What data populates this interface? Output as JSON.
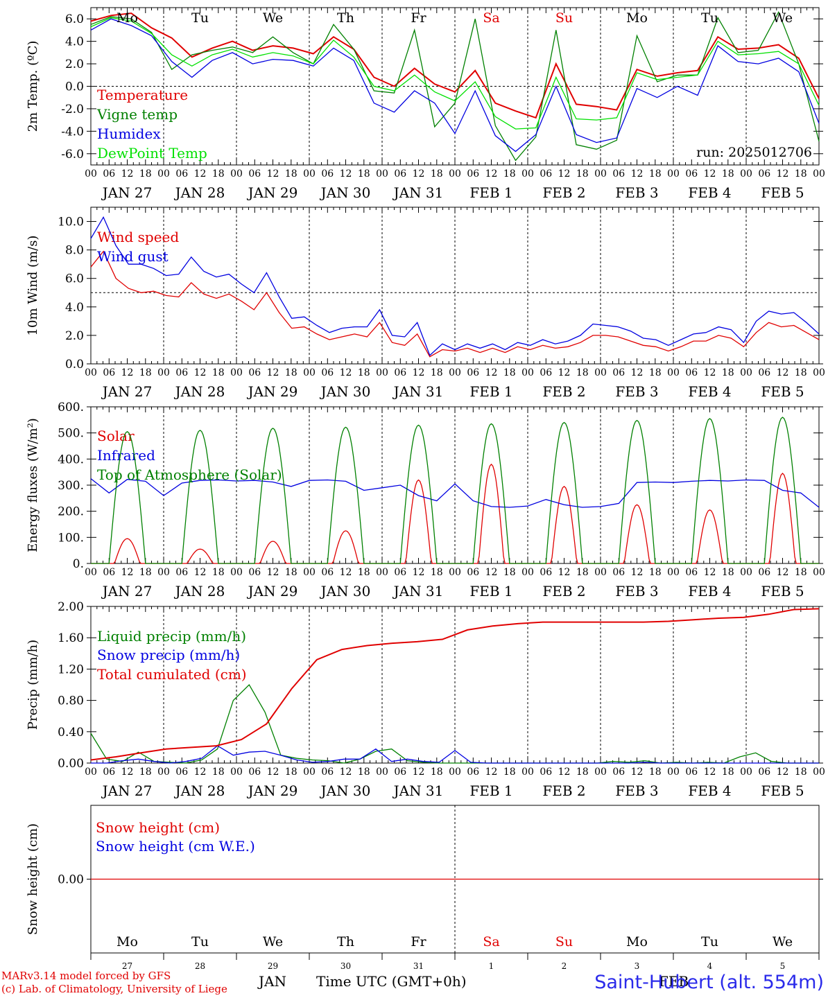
{
  "credits": {
    "line1": "MARv3.14 model forced by GFS",
    "line2": "(c) Lab. of Climatology, University of Liege"
  },
  "station": "Saint-Hubert (alt. 554m)",
  "x_axis_title": "Time UTC (GMT+0h)",
  "month_labels": {
    "first": "JAN",
    "second": "FEB"
  },
  "hour_labels": [
    "00",
    "06",
    "12",
    "18"
  ],
  "weekdays": [
    {
      "label": "Mo",
      "weekend": false
    },
    {
      "label": "Tu",
      "weekend": false
    },
    {
      "label": "We",
      "weekend": false
    },
    {
      "label": "Th",
      "weekend": false
    },
    {
      "label": "Fr",
      "weekend": false
    },
    {
      "label": "Sa",
      "weekend": true
    },
    {
      "label": "Su",
      "weekend": true
    },
    {
      "label": "Mo",
      "weekend": false
    },
    {
      "label": "Tu",
      "weekend": false
    },
    {
      "label": "We",
      "weekend": false
    }
  ],
  "day_labels": [
    "JAN 27",
    "JAN 28",
    "JAN 29",
    "JAN 30",
    "JAN 31",
    "FEB  1",
    "FEB  2",
    "FEB  3",
    "FEB  4",
    "FEB  5"
  ],
  "day_numbers": [
    "27",
    "28",
    "29",
    "30",
    "31",
    "1",
    "2",
    "3",
    "4",
    "5"
  ],
  "colors": {
    "red": "#e00000",
    "green": "#008000",
    "blue": "#0000e0",
    "lightgreen": "#00e000",
    "weekend": "#e00000"
  },
  "chart_data": [
    {
      "type": "line",
      "ylabel": "2m Temp. (ºC)",
      "ylim": [
        -7,
        7
      ],
      "ticks": [
        "6.0",
        "4.0",
        "2.0",
        "0.0",
        "-2.0",
        "-4.0",
        "-6.0"
      ],
      "tick_values": [
        6,
        4,
        2,
        0,
        -2,
        -4,
        -6
      ],
      "ref_line": 0,
      "annotation": "run: 2025012706",
      "x_hours": [
        0,
        6,
        12,
        18,
        24,
        30,
        36,
        42,
        48,
        54,
        60,
        66,
        72,
        78,
        84,
        90,
        96,
        102,
        108,
        114,
        120,
        126,
        132,
        138,
        144,
        150,
        156,
        162,
        168,
        174,
        180,
        186,
        192,
        198,
        204,
        210,
        216,
        222,
        228,
        234,
        240
      ],
      "series": [
        {
          "name": "Temperature",
          "color": "red",
          "values": [
            5.8,
            6.3,
            6.5,
            5.2,
            4.3,
            2.6,
            3.4,
            4.0,
            3.2,
            3.6,
            3.4,
            2.9,
            4.4,
            3.3,
            0.8,
            0.0,
            1.6,
            0.2,
            -0.5,
            1.4,
            -1.5,
            -2.2,
            -2.8,
            2.0,
            -1.6,
            -1.8,
            -2.1,
            1.5,
            0.9,
            1.2,
            1.4,
            4.4,
            3.3,
            3.4,
            3.7,
            2.5,
            -1.1
          ]
        },
        {
          "name": "Vigne temp",
          "color": "green",
          "values": [
            5.5,
            6.2,
            6.0,
            4.8,
            1.5,
            2.8,
            3.2,
            3.5,
            3.0,
            4.4,
            3.0,
            2.0,
            5.5,
            3.3,
            -0.4,
            -0.6,
            5.0,
            -3.6,
            -1.5,
            6.0,
            -3.5,
            -6.6,
            -4.5,
            5.0,
            -5.2,
            -5.6,
            -4.8,
            4.5,
            0.4,
            1.0,
            1.0,
            6.1,
            3.0,
            3.2,
            6.6,
            2.0,
            -4.9
          ]
        },
        {
          "name": "Humidex",
          "color": "blue",
          "values": [
            5.0,
            6.0,
            5.4,
            4.5,
            2.2,
            0.8,
            2.3,
            3.0,
            2.0,
            2.4,
            2.3,
            1.8,
            3.4,
            2.3,
            -1.5,
            -2.3,
            -0.4,
            -1.5,
            -4.2,
            -0.4,
            -4.4,
            -5.8,
            -4.3,
            0.0,
            -4.3,
            -5.0,
            -4.6,
            -0.2,
            -1.0,
            0.0,
            -0.8,
            3.6,
            2.2,
            2.0,
            2.5,
            1.3,
            -3.3
          ]
        },
        {
          "name": "DewPoint Temp",
          "color": "lightgreen",
          "values": [
            5.3,
            6.1,
            5.8,
            4.7,
            2.8,
            1.8,
            2.8,
            3.3,
            2.6,
            3.0,
            2.7,
            2.0,
            4.1,
            2.6,
            0.0,
            -0.4,
            1.0,
            -0.5,
            -1.3,
            0.4,
            -2.7,
            -3.8,
            -3.7,
            0.8,
            -2.9,
            -3.0,
            -2.8,
            1.2,
            0.6,
            0.8,
            1.0,
            4.0,
            2.8,
            2.9,
            3.1,
            2.0,
            -1.7
          ]
        }
      ]
    },
    {
      "type": "line",
      "ylabel": "10m Wind (m/s)",
      "ylim": [
        0,
        11
      ],
      "ticks": [
        "10.0",
        "8.0",
        "6.0",
        "4.0",
        "2.0",
        "0.0"
      ],
      "tick_values": [
        10,
        8,
        6,
        4,
        2,
        0
      ],
      "ref_line": 5,
      "series": [
        {
          "name": "Wind speed",
          "color": "red",
          "values": [
            6.8,
            7.9,
            6.0,
            5.3,
            5.0,
            5.1,
            4.8,
            4.7,
            5.7,
            4.9,
            4.6,
            4.9,
            4.4,
            3.8,
            5.0,
            3.6,
            2.5,
            2.6,
            2.1,
            1.7,
            1.9,
            2.1,
            1.9,
            2.9,
            1.5,
            1.3,
            2.1,
            0.5,
            1.0,
            0.9,
            1.1,
            0.8,
            1.1,
            0.8,
            1.2,
            1.0,
            1.3,
            1.1,
            1.2,
            1.5,
            2.0,
            2.0,
            1.9,
            1.6,
            1.3,
            1.2,
            0.9,
            1.2,
            1.6,
            1.6,
            2.0,
            1.8,
            1.2,
            2.2,
            2.9,
            2.6,
            2.7,
            2.2,
            1.7
          ]
        },
        {
          "name": "Wind gust",
          "color": "blue",
          "values": [
            8.8,
            10.3,
            8.3,
            7.0,
            7.0,
            6.7,
            6.2,
            6.3,
            7.5,
            6.5,
            6.1,
            6.3,
            5.6,
            5.0,
            6.4,
            4.7,
            3.2,
            3.3,
            2.7,
            2.2,
            2.5,
            2.6,
            2.6,
            3.8,
            2.0,
            1.9,
            2.9,
            0.6,
            1.4,
            1.0,
            1.4,
            1.1,
            1.4,
            1.0,
            1.5,
            1.3,
            1.7,
            1.4,
            1.6,
            2.0,
            2.8,
            2.7,
            2.6,
            2.3,
            1.8,
            1.7,
            1.3,
            1.7,
            2.1,
            2.2,
            2.6,
            2.4,
            1.5,
            3.0,
            3.7,
            3.5,
            3.6,
            2.9,
            2.1
          ]
        }
      ]
    },
    {
      "type": "line",
      "ylabel": "Energy fluxes (W/m²)",
      "ylim": [
        0,
        600
      ],
      "ticks": [
        "600.",
        "500.",
        "400.",
        "300.",
        "200.",
        "100.",
        "0."
      ],
      "tick_values": [
        600,
        500,
        400,
        300,
        200,
        100,
        0
      ],
      "series": [
        {
          "name": "Solar",
          "color": "red",
          "day_peaks": [
            95,
            55,
            85,
            125,
            320,
            380,
            295,
            225,
            205,
            345
          ]
        },
        {
          "name": "Infrared",
          "color": "blue",
          "values": [
            325,
            270,
            322,
            315,
            260,
            308,
            318,
            320,
            316,
            318,
            312,
            295,
            318,
            320,
            315,
            280,
            290,
            300,
            260,
            240,
            305,
            240,
            218,
            215,
            220,
            245,
            225,
            215,
            218,
            230,
            310,
            312,
            310,
            315,
            318,
            316,
            320,
            318,
            280,
            270,
            215
          ]
        },
        {
          "name": "Top of Atmosphere (Solar)",
          "color": "green",
          "day_peaks": [
            505,
            510,
            518,
            522,
            530,
            535,
            540,
            548,
            555,
            560
          ]
        }
      ]
    },
    {
      "type": "line",
      "ylabel": "Precip (mm/h)",
      "ylim": [
        0,
        2
      ],
      "ticks": [
        "2.00",
        "1.60",
        "1.20",
        "0.80",
        "0.40",
        "0.00"
      ],
      "tick_values": [
        2,
        1.6,
        1.2,
        0.8,
        0.4,
        0
      ],
      "series": [
        {
          "name": "Liquid precip (mm/h)",
          "color": "green",
          "values": [
            0.38,
            0.05,
            0.02,
            0.14,
            0.02,
            0.01,
            0.0,
            0.04,
            0.18,
            0.8,
            1.0,
            0.65,
            0.1,
            0.06,
            0.04,
            0.03,
            0.0,
            0.05,
            0.15,
            0.18,
            0.03,
            0.01,
            0.0,
            0.0,
            0.0,
            0.0,
            0.0,
            0.0,
            0.0,
            0.0,
            0.0,
            0.0,
            0.0,
            0.02,
            0.01,
            0.03,
            0.0,
            0.01,
            0.0,
            0.01,
            0.0,
            0.08,
            0.13,
            0.02,
            0.0,
            0.0,
            0.0
          ]
        },
        {
          "name": "Snow precip (mm/h)",
          "color": "blue",
          "values": [
            0.0,
            0.0,
            0.03,
            0.05,
            0.02,
            0.0,
            0.02,
            0.06,
            0.22,
            0.1,
            0.14,
            0.15,
            0.1,
            0.04,
            0.01,
            0.02,
            0.05,
            0.05,
            0.18,
            0.02,
            0.05,
            0.02,
            0.01,
            0.16,
            0.01,
            0.0,
            0.0,
            0.0,
            0.0,
            0.0,
            0.0,
            0.0,
            0.0,
            0.0,
            0.0,
            0.01,
            0.0,
            0.0,
            0.0,
            0.0,
            0.0,
            0.0,
            0.0,
            0.0,
            0.0,
            0.0,
            0.0
          ]
        },
        {
          "name": "Total cumulated (cm)",
          "color": "red",
          "values": [
            0.04,
            0.08,
            0.13,
            0.18,
            0.2,
            0.22,
            0.3,
            0.5,
            0.95,
            1.32,
            1.45,
            1.5,
            1.53,
            1.55,
            1.58,
            1.7,
            1.75,
            1.78,
            1.8,
            1.8,
            1.8,
            1.8,
            1.8,
            1.81,
            1.83,
            1.85,
            1.86,
            1.9,
            1.96,
            1.97
          ]
        }
      ]
    },
    {
      "type": "line",
      "ylabel": "Snow height (cm)",
      "ylim": [
        -1,
        1
      ],
      "ticks": [
        "0.00"
      ],
      "tick_values": [
        0
      ],
      "series": [
        {
          "name": "Snow height (cm)",
          "color": "red",
          "values": [
            0.0,
            0.0
          ]
        },
        {
          "name": "Snow height (cm W.E.)",
          "color": "blue",
          "values": []
        }
      ]
    }
  ]
}
